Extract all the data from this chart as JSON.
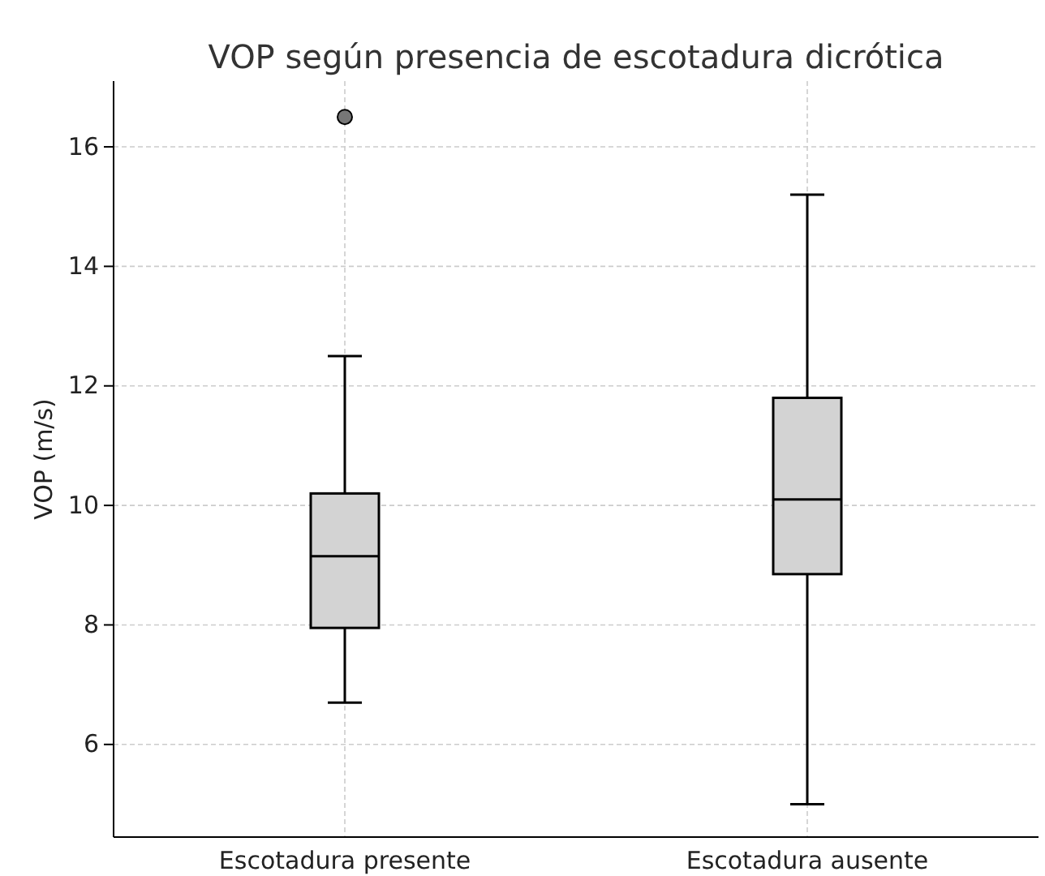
{
  "chart_data": {
    "type": "box",
    "title": "VOP según presencia de escotadura dicrótica",
    "ylabel": "VOP (m/s)",
    "categories": [
      "Escotadura presente",
      "Escotadura ausente"
    ],
    "boxes": [
      {
        "low": 6.7,
        "q1": 7.95,
        "median": 9.15,
        "q3": 10.2,
        "high": 12.5,
        "outliers": [
          16.5
        ]
      },
      {
        "low": 5.0,
        "q1": 8.85,
        "median": 10.1,
        "q3": 11.8,
        "high": 15.2
      }
    ],
    "color": "#d3d3d3",
    "ylim": [
      4.45,
      17.1
    ],
    "yticks": [
      6,
      8,
      10,
      12,
      14,
      16
    ],
    "grid": true
  }
}
